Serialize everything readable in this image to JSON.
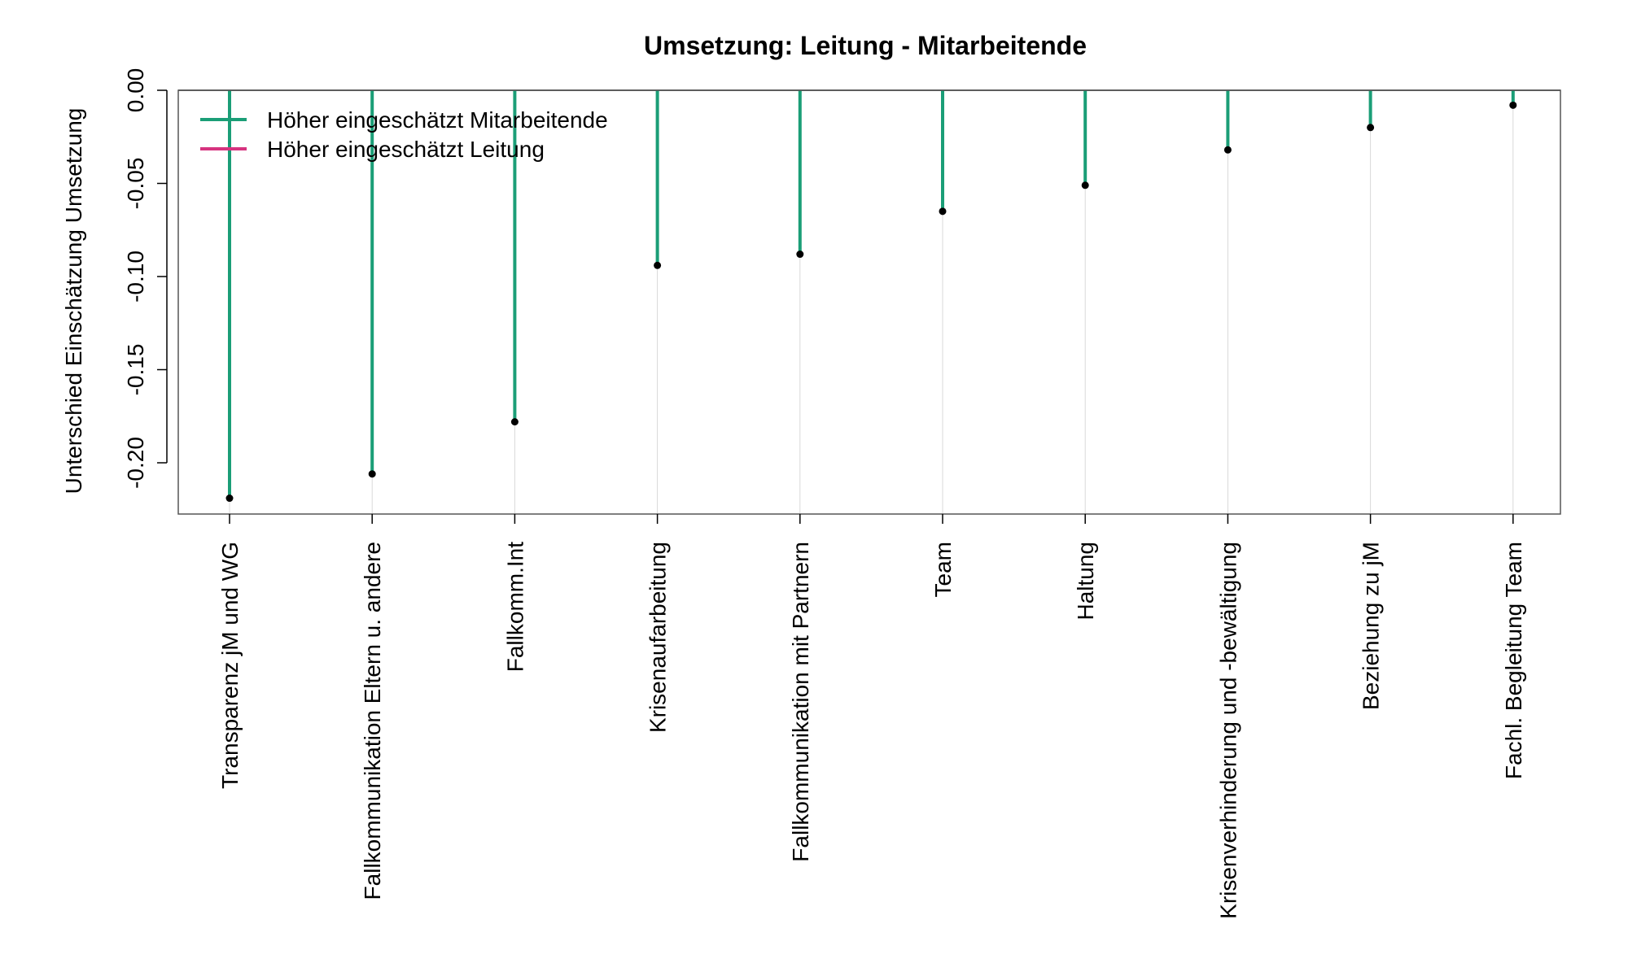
{
  "chart_data": {
    "type": "bar",
    "title": "Umsetzung: Leitung - Mitarbeitende",
    "xlabel": "",
    "ylabel": "Unterschied Einschätzung Umsetzung",
    "ylim": [
      -0.227,
      0.0
    ],
    "yticks": [
      0.0,
      -0.05,
      -0.1,
      -0.15,
      -0.2
    ],
    "yticklabels": [
      "0.00",
      "-0.05",
      "-0.10",
      "-0.15",
      "-0.20"
    ],
    "categories": [
      "Transparenz jM und WG",
      "Fallkommunikation Eltern u. andere",
      "Fallkomm.Int",
      "Krisenaufarbeitung",
      "Fallkommunikation mit Partnern",
      "Team",
      "Haltung",
      "Krisenverhinderung und -bewältigung",
      "Beziehung zu jM",
      "Fachl. Begleitung Team"
    ],
    "values": [
      -0.219,
      -0.206,
      -0.178,
      -0.094,
      -0.088,
      -0.065,
      -0.051,
      -0.032,
      -0.02,
      -0.008
    ],
    "grid": "vertical",
    "legend_position": "top-left",
    "legend": [
      {
        "label": "Höher eingeschätzt Mitarbeitende",
        "color": "#1b9e77"
      },
      {
        "label": "Höher eingeschätzt Leitung",
        "color": "#d6337f"
      }
    ],
    "bar_color": "#1b9e77",
    "point_color": "#000000"
  }
}
